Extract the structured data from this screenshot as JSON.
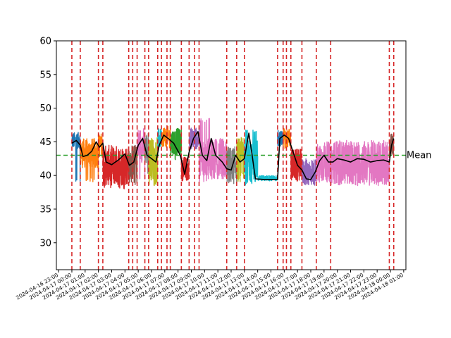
{
  "chart_data": {
    "type": "line",
    "title": "",
    "xlabel": "",
    "ylabel": "",
    "ylim": [
      26,
      60
    ],
    "xlim": [
      "2024-04-16 22:50",
      "2024-04-18 01:10"
    ],
    "y_ticks": [
      30,
      35,
      40,
      45,
      50,
      55,
      60
    ],
    "x_tick_labels": [
      "2024-04-16 23:00",
      "2024-04-17 00:00",
      "2024-04-17 01:00",
      "2024-04-17 02:00",
      "2024-04-17 03:00",
      "2024-04-17 04:00",
      "2024-04-17 05:00",
      "2024-04-17 06:00",
      "2024-04-17 07:00",
      "2024-04-17 08:00",
      "2024-04-17 09:00",
      "2024-04-17 10:00",
      "2024-04-17 11:00",
      "2024-04-17 12:00",
      "2024-04-17 13:00",
      "2024-04-17 14:00",
      "2024-04-17 15:00",
      "2024-04-17 16:00",
      "2024-04-17 17:00",
      "2024-04-17 18:00",
      "2024-04-17 19:00",
      "2024-04-17 20:00",
      "2024-04-17 21:00",
      "2024-04-17 22:00",
      "2024-04-17 23:00",
      "2024-04-18 00:00",
      "2024-04-18 01:00"
    ],
    "mean": {
      "value": 43,
      "label": "Mean",
      "color": "#2ca02c"
    },
    "vlines": {
      "color": "#d62728",
      "x": [
        "2024-04-17 00:00",
        "2024-04-17 00:38",
        "2024-04-17 02:00",
        "2024-04-17 02:20",
        "2024-04-17 04:17",
        "2024-04-17 04:35",
        "2024-04-17 04:55",
        "2024-04-17 05:30",
        "2024-04-17 05:47",
        "2024-04-17 06:28",
        "2024-04-17 06:45",
        "2024-04-17 07:10",
        "2024-04-17 07:25",
        "2024-04-17 08:15",
        "2024-04-17 08:50",
        "2024-04-17 09:15",
        "2024-04-17 09:35",
        "2024-04-17 11:40",
        "2024-04-17 12:25",
        "2024-04-17 13:00",
        "2024-04-17 15:30",
        "2024-04-17 15:55",
        "2024-04-17 16:10",
        "2024-04-17 16:30",
        "2024-04-17 17:20",
        "2024-04-17 18:25",
        "2024-04-17 19:30",
        "2024-04-17 23:55",
        "2024-04-18 00:15"
      ]
    },
    "segments": [
      {
        "start": "2024-04-17 00:00",
        "end": "2024-04-17 00:38",
        "color": "#1f77b4",
        "base": 45.2,
        "amp": 1.2,
        "dips": [
          39
        ]
      },
      {
        "start": "2024-04-17 00:38",
        "end": "2024-04-17 02:00",
        "color": "#ff7f0e",
        "base": 43.3,
        "amp": 2.2,
        "dips": [
          39
        ]
      },
      {
        "start": "2024-04-17 02:00",
        "end": "2024-04-17 02:20",
        "color": "#ff7f0e",
        "base": 44.5,
        "amp": 1.8,
        "dips": [
          38
        ]
      },
      {
        "start": "2024-04-17 02:20",
        "end": "2024-04-17 04:17",
        "color": "#d62728",
        "base": 41.5,
        "amp": 3.0,
        "dips": [
          38
        ]
      },
      {
        "start": "2024-04-17 04:17",
        "end": "2024-04-17 04:55",
        "color": "#8c564b",
        "base": 42.0,
        "amp": 2.6,
        "dips": [
          38.5
        ]
      },
      {
        "start": "2024-04-17 04:55",
        "end": "2024-04-17 05:30",
        "color": "#e377c2",
        "base": 44.5,
        "amp": 2.6,
        "dips": [
          39
        ]
      },
      {
        "start": "2024-04-17 05:30",
        "end": "2024-04-17 05:47",
        "color": "#7f7f7f",
        "base": 44.0,
        "amp": 2.5,
        "dips": [
          40
        ]
      },
      {
        "start": "2024-04-17 05:47",
        "end": "2024-04-17 06:28",
        "color": "#bcbd22",
        "base": 42.5,
        "amp": 3.2,
        "dips": [
          38.5
        ]
      },
      {
        "start": "2024-04-17 06:28",
        "end": "2024-04-17 06:45",
        "color": "#17becf",
        "base": 45.5,
        "amp": 1.5,
        "dips": [
          39
        ]
      },
      {
        "start": "2024-04-17 06:45",
        "end": "2024-04-17 07:25",
        "color": "#ff7f0e",
        "base": 45.8,
        "amp": 1.5,
        "dips": [
          44
        ]
      },
      {
        "start": "2024-04-17 07:25",
        "end": "2024-04-17 08:15",
        "color": "#2ca02c",
        "base": 45.0,
        "amp": 2.0,
        "dips": [
          42
        ]
      },
      {
        "start": "2024-04-17 08:15",
        "end": "2024-04-17 08:50",
        "color": "#d62728",
        "base": 41.0,
        "amp": 1.8,
        "dips": [
          39.5
        ]
      },
      {
        "start": "2024-04-17 08:50",
        "end": "2024-04-17 09:35",
        "color": "#9467bd",
        "base": 45.5,
        "amp": 1.6,
        "dips": [
          44
        ]
      },
      {
        "start": "2024-04-17 09:35",
        "end": "2024-04-17 11:40",
        "color": "#e377c2",
        "base": 42.5,
        "amp": 3.0,
        "dips": [
          39
        ],
        "peaks": [
          48.5
        ]
      },
      {
        "start": "2024-04-17 11:40",
        "end": "2024-04-17 12:25",
        "color": "#7f7f7f",
        "base": 41.5,
        "amp": 2.8,
        "dips": [
          39
        ]
      },
      {
        "start": "2024-04-17 12:25",
        "end": "2024-04-17 13:00",
        "color": "#bcbd22",
        "base": 42.5,
        "amp": 3.2,
        "dips": [
          39
        ]
      },
      {
        "start": "2024-04-17 13:00",
        "end": "2024-04-17 14:00",
        "color": "#17becf",
        "base": 42.0,
        "amp": 3.2,
        "dips": [
          38.5
        ],
        "peaks": [
          47
        ]
      },
      {
        "start": "2024-04-17 14:00",
        "end": "2024-04-17 15:30",
        "color": "#17becf",
        "base": 39.6,
        "amp": 0.4,
        "dips": []
      },
      {
        "start": "2024-04-17 15:30",
        "end": "2024-04-17 15:55",
        "color": "#1f77b4",
        "base": 45.5,
        "amp": 1.2,
        "dips": []
      },
      {
        "start": "2024-04-17 15:55",
        "end": "2024-04-17 16:30",
        "color": "#ff7f0e",
        "base": 45.5,
        "amp": 1.5,
        "dips": []
      },
      {
        "start": "2024-04-17 16:30",
        "end": "2024-04-17 17:20",
        "color": "#d62728",
        "base": 41.5,
        "amp": 2.4,
        "dips": [
          39
        ]
      },
      {
        "start": "2024-04-17 17:20",
        "end": "2024-04-17 18:25",
        "color": "#9467bd",
        "base": 40.5,
        "amp": 2.0,
        "dips": [
          39
        ]
      },
      {
        "start": "2024-04-17 18:25",
        "end": "2024-04-17 19:30",
        "color": "#e377c2",
        "base": 42.0,
        "amp": 3.0,
        "dips": [
          39
        ]
      },
      {
        "start": "2024-04-17 19:30",
        "end": "2024-04-17 23:55",
        "color": "#e377c2",
        "base": 42.0,
        "amp": 3.2,
        "dips": [
          38.5
        ]
      },
      {
        "start": "2024-04-17 23:55",
        "end": "2024-04-18 00:15",
        "color": "#8c564b",
        "base": 44.5,
        "amp": 1.8,
        "dips": []
      }
    ],
    "rolling_mean": {
      "color": "#000000",
      "points": [
        [
          "2024-04-17 00:00",
          44.8
        ],
        [
          "2024-04-17 00:20",
          45.2
        ],
        [
          "2024-04-17 00:38",
          44.5
        ],
        [
          "2024-04-17 00:50",
          42.8
        ],
        [
          "2024-04-17 01:10",
          43.0
        ],
        [
          "2024-04-17 01:30",
          43.6
        ],
        [
          "2024-04-17 01:50",
          45.0
        ],
        [
          "2024-04-17 02:05",
          44.2
        ],
        [
          "2024-04-17 02:20",
          44.8
        ],
        [
          "2024-04-17 02:35",
          42.0
        ],
        [
          "2024-04-17 03:00",
          41.6
        ],
        [
          "2024-04-17 03:30",
          42.3
        ],
        [
          "2024-04-17 04:00",
          43.2
        ],
        [
          "2024-04-17 04:20",
          41.5
        ],
        [
          "2024-04-17 04:40",
          42.0
        ],
        [
          "2024-04-17 05:00",
          44.5
        ],
        [
          "2024-04-17 05:20",
          45.5
        ],
        [
          "2024-04-17 05:40",
          43.0
        ],
        [
          "2024-04-17 06:00",
          42.5
        ],
        [
          "2024-04-17 06:20",
          42.0
        ],
        [
          "2024-04-17 06:35",
          44.5
        ],
        [
          "2024-04-17 06:55",
          46.0
        ],
        [
          "2024-04-17 07:15",
          45.5
        ],
        [
          "2024-04-17 07:40",
          44.8
        ],
        [
          "2024-04-17 08:10",
          43.0
        ],
        [
          "2024-04-17 08:30",
          40.2
        ],
        [
          "2024-04-17 08:50",
          43.5
        ],
        [
          "2024-04-17 09:10",
          45.5
        ],
        [
          "2024-04-17 09:30",
          46.5
        ],
        [
          "2024-04-17 09:50",
          43.0
        ],
        [
          "2024-04-17 10:10",
          42.2
        ],
        [
          "2024-04-17 10:30",
          45.5
        ],
        [
          "2024-04-17 10:50",
          43.0
        ],
        [
          "2024-04-17 11:20",
          42.0
        ],
        [
          "2024-04-17 11:40",
          41.0
        ],
        [
          "2024-04-17 12:00",
          40.8
        ],
        [
          "2024-04-17 12:20",
          43.0
        ],
        [
          "2024-04-17 12:40",
          42.0
        ],
        [
          "2024-04-17 13:00",
          42.5
        ],
        [
          "2024-04-17 13:20",
          46.3
        ],
        [
          "2024-04-17 13:35",
          43.0
        ],
        [
          "2024-04-17 13:50",
          39.5
        ],
        [
          "2024-04-17 14:30",
          39.4
        ],
        [
          "2024-04-17 15:30",
          39.4
        ],
        [
          "2024-04-17 15:40",
          45.5
        ],
        [
          "2024-04-17 16:00",
          46.0
        ],
        [
          "2024-04-17 16:20",
          45.5
        ],
        [
          "2024-04-17 16:40",
          43.5
        ],
        [
          "2024-04-17 17:00",
          41.5
        ],
        [
          "2024-04-17 17:20",
          40.8
        ],
        [
          "2024-04-17 17:40",
          39.5
        ],
        [
          "2024-04-17 18:00",
          39.4
        ],
        [
          "2024-04-17 18:20",
          40.5
        ],
        [
          "2024-04-17 18:40",
          42.2
        ],
        [
          "2024-04-17 19:00",
          43.0
        ],
        [
          "2024-04-17 19:20",
          42.0
        ],
        [
          "2024-04-17 19:40",
          42.0
        ],
        [
          "2024-04-17 20:00",
          42.5
        ],
        [
          "2024-04-17 20:30",
          42.3
        ],
        [
          "2024-04-17 21:00",
          42.0
        ],
        [
          "2024-04-17 21:30",
          42.5
        ],
        [
          "2024-04-17 22:00",
          42.4
        ],
        [
          "2024-04-17 22:30",
          42.0
        ],
        [
          "2024-04-17 23:00",
          42.2
        ],
        [
          "2024-04-17 23:30",
          42.3
        ],
        [
          "2024-04-17 23:55",
          42.0
        ],
        [
          "2024-04-18 00:05",
          44.5
        ],
        [
          "2024-04-18 00:15",
          45.5
        ]
      ]
    }
  }
}
